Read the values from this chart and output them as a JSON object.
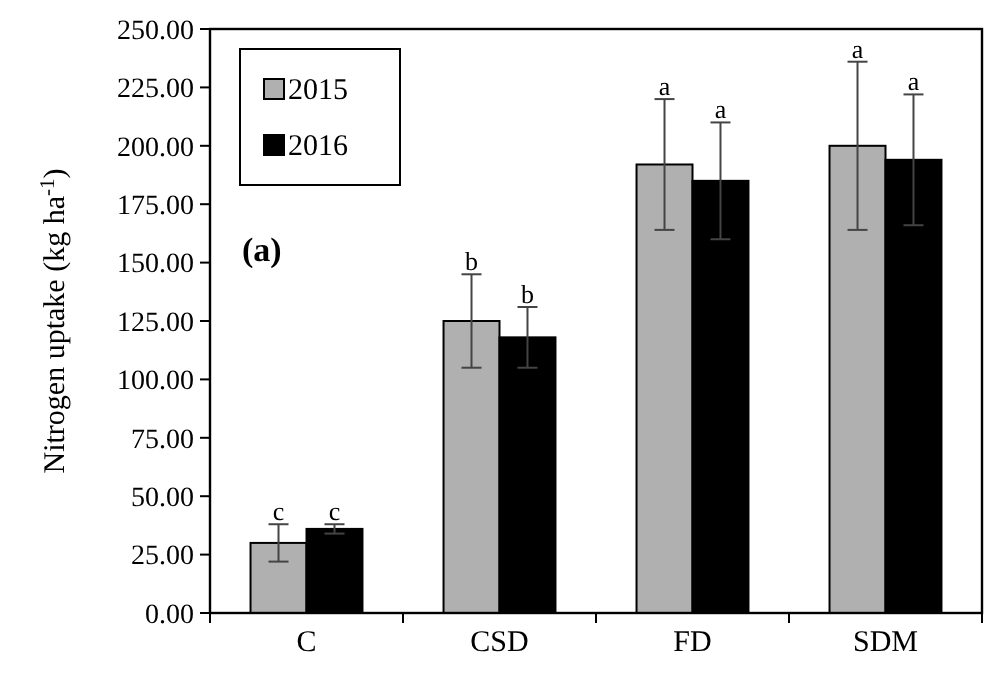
{
  "chart_data": {
    "type": "bar",
    "ylabel": "Nitrogen uptake (kg ha$^{-1}$)",
    "categories": [
      "C",
      "CSD",
      "FD",
      "SDM"
    ],
    "series": [
      {
        "name": "2015",
        "color": "#b0b0b0",
        "values": [
          30,
          125,
          192,
          200
        ],
        "errors": [
          8,
          20,
          28,
          36
        ]
      },
      {
        "name": "2016",
        "color": "#000000",
        "values": [
          36,
          118,
          185,
          194
        ],
        "errors": [
          2,
          13,
          25,
          28
        ]
      }
    ],
    "ylim": [
      0,
      250
    ],
    "yticks": [
      {
        "value": 0,
        "label": "0.00"
      },
      {
        "value": 25,
        "label": "25.00"
      },
      {
        "value": 50,
        "label": "50.00"
      },
      {
        "value": 75,
        "label": "75.00"
      },
      {
        "value": 100,
        "label": "100.00"
      },
      {
        "value": 125,
        "label": "125.00"
      },
      {
        "value": 150,
        "label": "150.00"
      },
      {
        "value": 175,
        "label": "175.00"
      },
      {
        "value": 200,
        "label": "200.00"
      },
      {
        "value": 225,
        "label": "225.00"
      },
      {
        "value": 250,
        "label": "250.00"
      }
    ],
    "legend": "top left",
    "annotations": [
      "(a)",
      "c",
      "c",
      "b",
      "b",
      "a",
      "a",
      "a",
      "a"
    ]
  }
}
